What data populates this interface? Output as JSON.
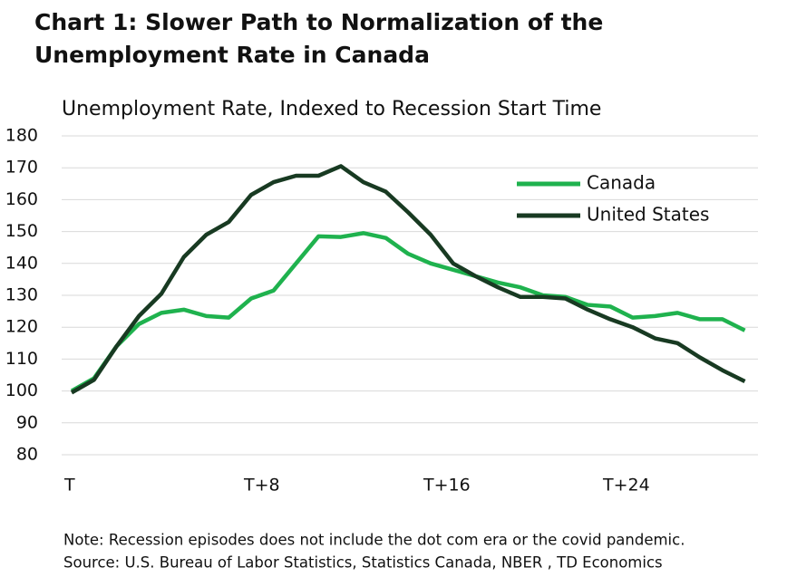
{
  "chart_data": {
    "type": "line",
    "title": [
      "Chart 1: Slower Path to Normalization of the",
      "Unemployment Rate in Canada"
    ],
    "subtitle": "Unemployment Rate, Indexed to Recession Start Time",
    "categories": [
      "T",
      null,
      null,
      null,
      null,
      null,
      null,
      null,
      "T+8",
      null,
      null,
      null,
      null,
      null,
      null,
      null,
      "T+16",
      null,
      null,
      null,
      null,
      null,
      null,
      null,
      "T+24",
      null,
      null,
      null,
      null,
      null,
      null
    ],
    "series": [
      {
        "name": "Canada",
        "color": "#1fb24e",
        "values": [
          100,
          104,
          114,
          121,
          124.5,
          125.5,
          123.5,
          123,
          129,
          131.5,
          140,
          148.5,
          148.3,
          149.5,
          148,
          143,
          140,
          138,
          136,
          134,
          132.5,
          130,
          129.5,
          127,
          126.5,
          123,
          123.5,
          124.5,
          122.5,
          122.5,
          119
        ]
      },
      {
        "name": "United States",
        "color": "#183a22",
        "values": [
          99.5,
          103.5,
          114,
          123.5,
          130.5,
          142,
          149,
          153,
          161.5,
          165.5,
          167.5,
          167.5,
          170.5,
          165.5,
          162.5,
          156,
          149,
          140,
          136,
          132.5,
          129.5,
          129.5,
          129,
          125.5,
          122.5,
          120,
          116.5,
          115,
          110.5,
          106.5,
          103
        ]
      }
    ],
    "ylim": [
      80,
      180
    ],
    "yticks": [
      80,
      90,
      100,
      110,
      120,
      130,
      140,
      150,
      160,
      170,
      180
    ],
    "grid": true,
    "legend": "upper right",
    "notes": [
      "Note: Recession episodes does not include the dot com era or the covid pandemic.",
      "Source: U.S. Bureau of Labor Statistics, Statistics Canada, NBER , TD Economics"
    ]
  }
}
